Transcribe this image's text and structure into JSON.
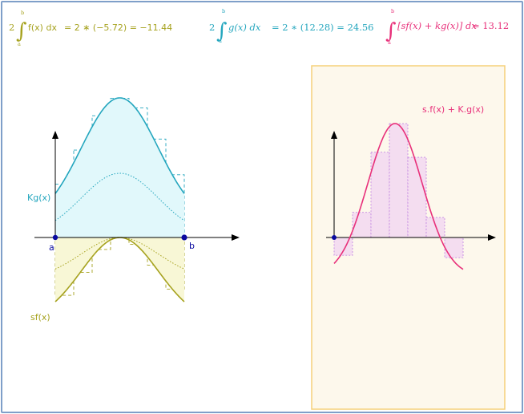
{
  "formulas": {
    "f": {
      "coef": "2",
      "upper": "b",
      "lower": "a",
      "integrand": "f(x) dx",
      "rhs": "= 2 ∗ (−5.72) = −11.44",
      "color": "#a6a21e"
    },
    "g": {
      "coef": "2",
      "upper": "b",
      "lower": "a",
      "integrand": "g(x) dx",
      "rhs": "= 2 ∗ (12.28) = 24.56",
      "color": "#24a6be"
    },
    "h": {
      "upper": "b",
      "lower": "a",
      "integrand": "[sf(x) + kg(x)] dx",
      "rhs": "= 13.12",
      "color": "#e8307a"
    }
  },
  "left_graph": {
    "label_g": "Kg(x)",
    "label_f": "sf(x)",
    "point_a": "a",
    "point_b": "b",
    "g_color": "#24a6be",
    "g_fill": "#e1f8fb",
    "f_color": "#a6a21e",
    "f_fill": "#f8f7d6"
  },
  "right_graph": {
    "label": "s.f(x) + K.g(x)",
    "curve_color": "#e8307a",
    "bar_fill": "#f4ddf0",
    "bar_stroke": "#c58ae2",
    "panel_fill": "#fdf8ec",
    "panel_border": "#f5d07a"
  },
  "colors": {
    "axis": "#000000",
    "point": "#0a0aa0",
    "frame": "#7f9fc9"
  }
}
